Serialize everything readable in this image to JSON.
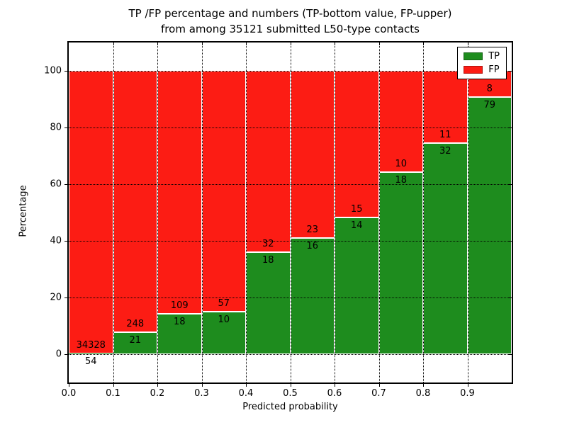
{
  "title": {
    "line1": "TP /FP percentage and numbers (TP-bottom value, FP-upper)",
    "line2": "from among 35121 submitted L50-type contacts"
  },
  "axes": {
    "xlabel": "Predicted probability",
    "ylabel": "Percentage",
    "x_tick_values": [
      0.0,
      0.1,
      0.2,
      0.3,
      0.4,
      0.5,
      0.6,
      0.7,
      0.8,
      0.9
    ],
    "x_tick_labels": [
      "0.0",
      "0.1",
      "0.2",
      "0.3",
      "0.4",
      "0.5",
      "0.6",
      "0.7",
      "0.8",
      "0.9"
    ],
    "y_tick_values": [
      0,
      20,
      40,
      60,
      80,
      100
    ],
    "y_tick_labels": [
      "0",
      "20",
      "40",
      "60",
      "80",
      "100"
    ],
    "xlim": [
      0.0,
      1.0
    ],
    "ylim": [
      -10,
      110
    ],
    "grid_style": "dotted"
  },
  "legend": {
    "position": "upper-right",
    "entries": [
      {
        "label": "TP",
        "color": "#1e8c1e"
      },
      {
        "label": "FP",
        "color": "#fc1c14"
      }
    ]
  },
  "colors": {
    "tp_green": "#1e8c1e",
    "fp_red": "#fc1c14",
    "bar_edge": "#ffffff",
    "grid": "#000000",
    "background": "#ffffff"
  },
  "chart_data": {
    "type": "bar",
    "stacked": true,
    "normalized_to_percent": true,
    "title": "TP /FP percentage and numbers (TP-bottom value, FP-upper) from among 35121 submitted L50-type contacts",
    "xlabel": "Predicted probability",
    "ylabel": "Percentage",
    "total_submitted": 35121,
    "bin_edges": [
      0.0,
      0.1,
      0.2,
      0.3,
      0.4,
      0.5,
      0.6,
      0.7,
      0.8,
      0.9,
      1.0
    ],
    "series": [
      {
        "name": "TP",
        "color": "#1e8c1e",
        "counts": [
          54,
          21,
          18,
          10,
          18,
          16,
          14,
          18,
          32,
          79
        ]
      },
      {
        "name": "FP",
        "color": "#fc1c14",
        "counts": [
          34328,
          248,
          109,
          57,
          32,
          23,
          15,
          10,
          11,
          8
        ]
      }
    ],
    "tp_percent": [
      0.16,
      7.81,
      14.17,
      14.93,
      36.0,
      41.03,
      48.28,
      64.29,
      74.42,
      90.8
    ],
    "legend_entries": [
      "TP",
      "FP"
    ],
    "legend_position": "upper-right",
    "grid": true,
    "label_note": "FP count printed above TP/FP boundary, TP count printed below boundary"
  }
}
